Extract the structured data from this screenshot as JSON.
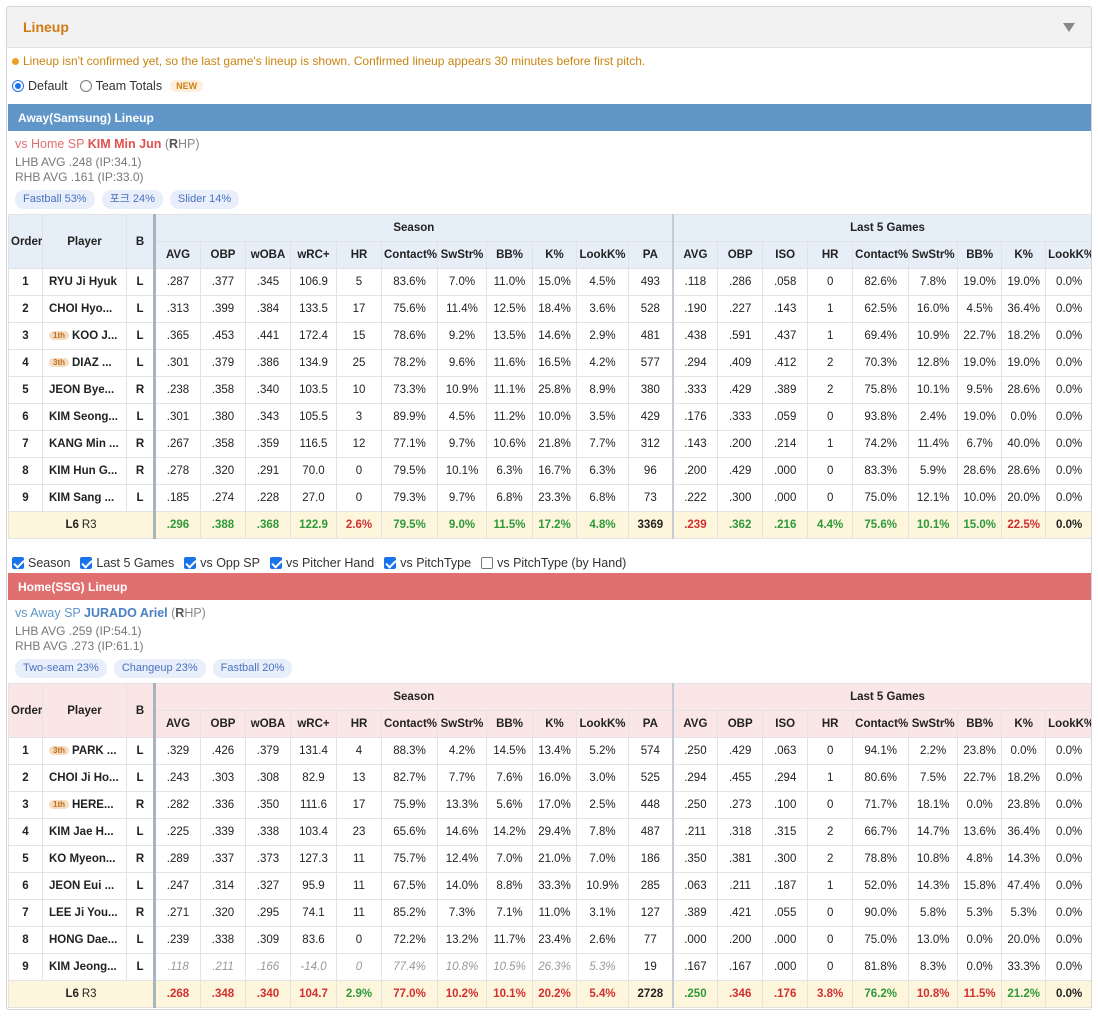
{
  "panel": {
    "title": "Lineup"
  },
  "notice": "Lineup isn't confirmed yet, so the last game's lineup is shown. Confirmed lineup appears 30 minutes before first pitch.",
  "view_options": {
    "default": "Default",
    "team_totals": "Team Totals",
    "new_badge": "NEW",
    "selected": "Default"
  },
  "colors": {
    "away": "#6096c8",
    "home": "#e07070",
    "accent": "#d07a10",
    "good": "#2e9a3a",
    "bad": "#d03030"
  },
  "headers": {
    "order": "Order",
    "player": "Player",
    "bats": "B",
    "season": "Season",
    "last5": "Last 5 Games",
    "season_cols": [
      "AVG",
      "OBP",
      "wOBA",
      "wRC+",
      "HR",
      "Contact%",
      "SwStr%",
      "BB%",
      "K%",
      "LookK%",
      "PA"
    ],
    "last5_cols": [
      "AVG",
      "OBP",
      "ISO",
      "HR",
      "Contact%",
      "SwStr%",
      "BB%",
      "K%",
      "LookK%"
    ]
  },
  "filters": [
    {
      "label": "Season",
      "checked": true
    },
    {
      "label": "Last 5 Games",
      "checked": true
    },
    {
      "label": "vs Opp SP",
      "checked": true
    },
    {
      "label": "vs Pitcher Hand",
      "checked": true
    },
    {
      "label": "vs PitchType",
      "checked": true
    },
    {
      "label": "vs PitchType (by Hand)",
      "checked": false
    }
  ],
  "away": {
    "title": "Away(Samsung) Lineup",
    "sp_prefix": "vs Home SP",
    "sp_name": "KIM Min Jun",
    "sp_hand_open": "(",
    "sp_hand_letter": "R",
    "sp_hand_close": "HP)",
    "lhb": "LHB AVG .248 (IP:34.1)",
    "rhb": "RHB AVG .161 (IP:33.0)",
    "pitches": [
      "Fastball 53%",
      "포크 24%",
      "Slider 14%"
    ],
    "rows": [
      {
        "order": "1",
        "rank": "",
        "player": "RYU Ji Hyuk",
        "bats": "L",
        "season": [
          ".287",
          ".377",
          ".345",
          "106.9",
          "5",
          "83.6%",
          "7.0%",
          "11.0%",
          "15.0%",
          "4.5%",
          "493"
        ],
        "last5": [
          ".118",
          ".286",
          ".058",
          "0",
          "82.6%",
          "7.8%",
          "19.0%",
          "19.0%",
          "0.0%"
        ]
      },
      {
        "order": "2",
        "rank": "",
        "player": "CHOI Hyo...",
        "bats": "L",
        "season": [
          ".313",
          ".399",
          ".384",
          "133.5",
          "17",
          "75.6%",
          "11.4%",
          "12.5%",
          "18.4%",
          "3.6%",
          "528"
        ],
        "last5": [
          ".190",
          ".227",
          ".143",
          "1",
          "62.5%",
          "16.0%",
          "4.5%",
          "36.4%",
          "0.0%"
        ]
      },
      {
        "order": "3",
        "rank": "1th",
        "player": "KOO J...",
        "bats": "L",
        "season": [
          ".365",
          ".453",
          ".441",
          "172.4",
          "15",
          "78.6%",
          "9.2%",
          "13.5%",
          "14.6%",
          "2.9%",
          "481"
        ],
        "last5": [
          ".438",
          ".591",
          ".437",
          "1",
          "69.4%",
          "10.9%",
          "22.7%",
          "18.2%",
          "0.0%"
        ]
      },
      {
        "order": "4",
        "rank": "3th",
        "player": "DIAZ ...",
        "bats": "L",
        "season": [
          ".301",
          ".379",
          ".386",
          "134.9",
          "25",
          "78.2%",
          "9.6%",
          "11.6%",
          "16.5%",
          "4.2%",
          "577"
        ],
        "last5": [
          ".294",
          ".409",
          ".412",
          "2",
          "70.3%",
          "12.8%",
          "19.0%",
          "19.0%",
          "0.0%"
        ]
      },
      {
        "order": "5",
        "rank": "",
        "player": "JEON Bye...",
        "bats": "R",
        "season": [
          ".238",
          ".358",
          ".340",
          "103.5",
          "10",
          "73.3%",
          "10.9%",
          "11.1%",
          "25.8%",
          "8.9%",
          "380"
        ],
        "last5": [
          ".333",
          ".429",
          ".389",
          "2",
          "75.8%",
          "10.1%",
          "9.5%",
          "28.6%",
          "0.0%"
        ]
      },
      {
        "order": "6",
        "rank": "",
        "player": "KIM Seong...",
        "bats": "L",
        "season": [
          ".301",
          ".380",
          ".343",
          "105.5",
          "3",
          "89.9%",
          "4.5%",
          "11.2%",
          "10.0%",
          "3.5%",
          "429"
        ],
        "last5": [
          ".176",
          ".333",
          ".059",
          "0",
          "93.8%",
          "2.4%",
          "19.0%",
          "0.0%",
          "0.0%"
        ]
      },
      {
        "order": "7",
        "rank": "",
        "player": "KANG Min ...",
        "bats": "R",
        "season": [
          ".267",
          ".358",
          ".359",
          "116.5",
          "12",
          "77.1%",
          "9.7%",
          "10.6%",
          "21.8%",
          "7.7%",
          "312"
        ],
        "last5": [
          ".143",
          ".200",
          ".214",
          "1",
          "74.2%",
          "11.4%",
          "6.7%",
          "40.0%",
          "0.0%"
        ]
      },
      {
        "order": "8",
        "rank": "",
        "player": "KIM Hun G...",
        "bats": "R",
        "season": [
          ".278",
          ".320",
          ".291",
          "70.0",
          "0",
          "79.5%",
          "10.1%",
          "6.3%",
          "16.7%",
          "6.3%",
          "96"
        ],
        "last5": [
          ".200",
          ".429",
          ".000",
          "0",
          "83.3%",
          "5.9%",
          "28.6%",
          "28.6%",
          "0.0%"
        ]
      },
      {
        "order": "9",
        "rank": "",
        "player": "KIM Sang ...",
        "bats": "L",
        "season": [
          ".185",
          ".274",
          ".228",
          "27.0",
          "0",
          "79.3%",
          "9.7%",
          "6.8%",
          "23.3%",
          "6.8%",
          "73"
        ],
        "last5": [
          ".222",
          ".300",
          ".000",
          "0",
          "75.0%",
          "12.1%",
          "10.0%",
          "20.0%",
          "0.0%"
        ]
      }
    ],
    "total": {
      "label_a": "L6",
      "label_b": "R3",
      "season": [
        ".296",
        ".388",
        ".368",
        "122.9",
        "2.6%",
        "79.5%",
        "9.0%",
        "11.5%",
        "17.2%",
        "4.8%",
        "3369"
      ],
      "season_cls": [
        "g",
        "g",
        "g",
        "g",
        "r",
        "g",
        "g",
        "g",
        "g",
        "g",
        "k"
      ],
      "last5": [
        ".239",
        ".362",
        ".216",
        "4.4%",
        "75.6%",
        "10.1%",
        "15.0%",
        "22.5%",
        "0.0%"
      ],
      "last5_cls": [
        "r",
        "g",
        "g",
        "g",
        "g",
        "g",
        "g",
        "r",
        "k"
      ]
    }
  },
  "home": {
    "title": "Home(SSG) Lineup",
    "sp_prefix": "vs Away SP",
    "sp_name": "JURADO Ariel",
    "sp_hand_open": "(",
    "sp_hand_letter": "R",
    "sp_hand_close": "HP)",
    "lhb": "LHB AVG .259 (IP:54.1)",
    "rhb": "RHB AVG .273 (IP:61.1)",
    "pitches": [
      "Two-seam 23%",
      "Changeup 23%",
      "Fastball 20%"
    ],
    "rows": [
      {
        "order": "1",
        "rank": "3th",
        "player": "PARK ...",
        "bats": "L",
        "season": [
          ".329",
          ".426",
          ".379",
          "131.4",
          "4",
          "88.3%",
          "4.2%",
          "14.5%",
          "13.4%",
          "5.2%",
          "574"
        ],
        "last5": [
          ".250",
          ".429",
          ".063",
          "0",
          "94.1%",
          "2.2%",
          "23.8%",
          "0.0%",
          "0.0%"
        ]
      },
      {
        "order": "2",
        "rank": "",
        "player": "CHOI Ji Ho...",
        "bats": "L",
        "season": [
          ".243",
          ".303",
          ".308",
          "82.9",
          "13",
          "82.7%",
          "7.7%",
          "7.6%",
          "16.0%",
          "3.0%",
          "525"
        ],
        "last5": [
          ".294",
          ".455",
          ".294",
          "1",
          "80.6%",
          "7.5%",
          "22.7%",
          "18.2%",
          "0.0%"
        ]
      },
      {
        "order": "3",
        "rank": "1th",
        "player": "HERE...",
        "bats": "R",
        "season": [
          ".282",
          ".336",
          ".350",
          "111.6",
          "17",
          "75.9%",
          "13.3%",
          "5.6%",
          "17.0%",
          "2.5%",
          "448"
        ],
        "last5": [
          ".250",
          ".273",
          ".100",
          "0",
          "71.7%",
          "18.1%",
          "0.0%",
          "23.8%",
          "0.0%"
        ]
      },
      {
        "order": "4",
        "rank": "",
        "player": "KIM Jae H...",
        "bats": "L",
        "season": [
          ".225",
          ".339",
          ".338",
          "103.4",
          "23",
          "65.6%",
          "14.6%",
          "14.2%",
          "29.4%",
          "7.8%",
          "487"
        ],
        "last5": [
          ".211",
          ".318",
          ".315",
          "2",
          "66.7%",
          "14.7%",
          "13.6%",
          "36.4%",
          "0.0%"
        ]
      },
      {
        "order": "5",
        "rank": "",
        "player": "KO Myeon...",
        "bats": "R",
        "season": [
          ".289",
          ".337",
          ".373",
          "127.3",
          "11",
          "75.7%",
          "12.4%",
          "7.0%",
          "21.0%",
          "7.0%",
          "186"
        ],
        "last5": [
          ".350",
          ".381",
          ".300",
          "2",
          "78.8%",
          "10.8%",
          "4.8%",
          "14.3%",
          "0.0%"
        ]
      },
      {
        "order": "6",
        "rank": "",
        "player": "JEON Eui ...",
        "bats": "L",
        "season": [
          ".247",
          ".314",
          ".327",
          "95.9",
          "11",
          "67.5%",
          "14.0%",
          "8.8%",
          "33.3%",
          "10.9%",
          "285"
        ],
        "last5": [
          ".063",
          ".211",
          ".187",
          "1",
          "52.0%",
          "14.3%",
          "15.8%",
          "47.4%",
          "0.0%"
        ]
      },
      {
        "order": "7",
        "rank": "",
        "player": "LEE Ji You...",
        "bats": "R",
        "season": [
          ".271",
          ".320",
          ".295",
          "74.1",
          "11",
          "85.2%",
          "7.3%",
          "7.1%",
          "11.0%",
          "3.1%",
          "127"
        ],
        "last5": [
          ".389",
          ".421",
          ".055",
          "0",
          "90.0%",
          "5.8%",
          "5.3%",
          "5.3%",
          "0.0%"
        ]
      },
      {
        "order": "8",
        "rank": "",
        "player": "HONG Dae...",
        "bats": "L",
        "season": [
          ".239",
          ".338",
          ".309",
          "83.6",
          "0",
          "72.2%",
          "13.2%",
          "11.7%",
          "23.4%",
          "2.6%",
          "77"
        ],
        "last5": [
          ".000",
          ".200",
          ".000",
          "0",
          "75.0%",
          "13.0%",
          "0.0%",
          "20.0%",
          "0.0%"
        ]
      },
      {
        "order": "9",
        "rank": "",
        "player": "KIM Jeong...",
        "bats": "L",
        "dim_season": true,
        "season": [
          ".118",
          ".211",
          ".166",
          "-14.0",
          "0",
          "77.4%",
          "10.8%",
          "10.5%",
          "26.3%",
          "5.3%",
          "19"
        ],
        "last5": [
          ".167",
          ".167",
          ".000",
          "0",
          "81.8%",
          "8.3%",
          "0.0%",
          "33.3%",
          "0.0%"
        ]
      }
    ],
    "total": {
      "label_a": "L6",
      "label_b": "R3",
      "season": [
        ".268",
        ".348",
        ".340",
        "104.7",
        "2.9%",
        "77.0%",
        "10.2%",
        "10.1%",
        "20.2%",
        "5.4%",
        "2728"
      ],
      "season_cls": [
        "r",
        "r",
        "r",
        "r",
        "g",
        "r",
        "r",
        "r",
        "r",
        "r",
        "k"
      ],
      "last5": [
        ".250",
        ".346",
        ".176",
        "3.8%",
        "76.2%",
        "10.8%",
        "11.5%",
        "21.2%",
        "0.0%"
      ],
      "last5_cls": [
        "g",
        "r",
        "r",
        "r",
        "g",
        "r",
        "r",
        "g",
        "k"
      ]
    }
  }
}
